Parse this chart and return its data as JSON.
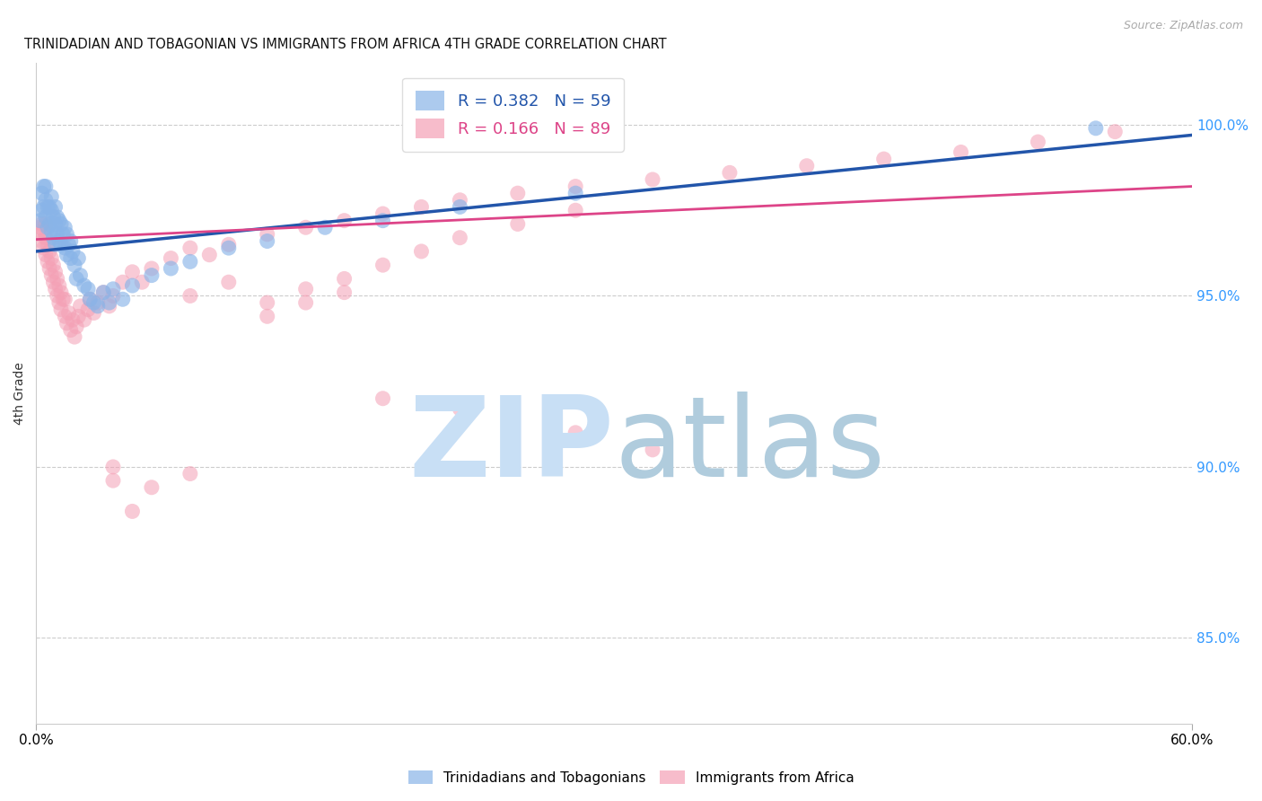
{
  "title": "TRINIDADIAN AND TOBAGONIAN VS IMMIGRANTS FROM AFRICA 4TH GRADE CORRELATION CHART",
  "source": "Source: ZipAtlas.com",
  "ylabel": "4th Grade",
  "ytick_labels": [
    "100.0%",
    "95.0%",
    "90.0%",
    "85.0%"
  ],
  "ytick_values": [
    1.0,
    0.95,
    0.9,
    0.85
  ],
  "xlim": [
    0.0,
    0.6
  ],
  "ylim": [
    0.825,
    1.018
  ],
  "legend1_label": "R = 0.382   N = 59",
  "legend2_label": "R = 0.166   N = 89",
  "legend1_color": "#89b4e8",
  "legend2_color": "#f4a0b5",
  "trendline1_color": "#2255aa",
  "trendline2_color": "#dd4488",
  "title_fontsize": 11,
  "blue_scatter_x": [
    0.002,
    0.003,
    0.003,
    0.004,
    0.004,
    0.005,
    0.005,
    0.005,
    0.006,
    0.006,
    0.007,
    0.007,
    0.008,
    0.008,
    0.008,
    0.009,
    0.009,
    0.01,
    0.01,
    0.01,
    0.011,
    0.011,
    0.012,
    0.012,
    0.013,
    0.013,
    0.014,
    0.015,
    0.015,
    0.016,
    0.016,
    0.017,
    0.018,
    0.018,
    0.019,
    0.02,
    0.021,
    0.022,
    0.023,
    0.025,
    0.027,
    0.028,
    0.03,
    0.032,
    0.035,
    0.038,
    0.04,
    0.045,
    0.05,
    0.06,
    0.07,
    0.08,
    0.1,
    0.12,
    0.15,
    0.18,
    0.22,
    0.28,
    0.55
  ],
  "blue_scatter_y": [
    0.972,
    0.975,
    0.98,
    0.976,
    0.982,
    0.973,
    0.978,
    0.982,
    0.97,
    0.976,
    0.971,
    0.976,
    0.969,
    0.975,
    0.979,
    0.967,
    0.973,
    0.965,
    0.971,
    0.976,
    0.968,
    0.973,
    0.966,
    0.972,
    0.965,
    0.971,
    0.968,
    0.964,
    0.97,
    0.962,
    0.968,
    0.965,
    0.961,
    0.966,
    0.963,
    0.959,
    0.955,
    0.961,
    0.956,
    0.953,
    0.952,
    0.949,
    0.948,
    0.947,
    0.951,
    0.948,
    0.952,
    0.949,
    0.953,
    0.956,
    0.958,
    0.96,
    0.964,
    0.966,
    0.97,
    0.972,
    0.976,
    0.98,
    0.999
  ],
  "pink_scatter_x": [
    0.001,
    0.002,
    0.003,
    0.003,
    0.004,
    0.004,
    0.005,
    0.005,
    0.005,
    0.006,
    0.006,
    0.007,
    0.007,
    0.008,
    0.008,
    0.009,
    0.009,
    0.01,
    0.01,
    0.011,
    0.011,
    0.012,
    0.012,
    0.013,
    0.013,
    0.014,
    0.015,
    0.015,
    0.016,
    0.017,
    0.018,
    0.019,
    0.02,
    0.021,
    0.022,
    0.023,
    0.025,
    0.027,
    0.028,
    0.03,
    0.032,
    0.035,
    0.038,
    0.04,
    0.045,
    0.05,
    0.055,
    0.06,
    0.07,
    0.08,
    0.09,
    0.1,
    0.12,
    0.14,
    0.16,
    0.18,
    0.2,
    0.22,
    0.25,
    0.28,
    0.32,
    0.36,
    0.4,
    0.44,
    0.48,
    0.52,
    0.56,
    0.08,
    0.1,
    0.12,
    0.14,
    0.16,
    0.18,
    0.2,
    0.22,
    0.25,
    0.28,
    0.18,
    0.22,
    0.28,
    0.32,
    0.12,
    0.14,
    0.16,
    0.04,
    0.06,
    0.08,
    0.04,
    0.05
  ],
  "pink_scatter_y": [
    0.968,
    0.97,
    0.966,
    0.971,
    0.964,
    0.969,
    0.962,
    0.967,
    0.971,
    0.96,
    0.965,
    0.958,
    0.963,
    0.956,
    0.961,
    0.954,
    0.959,
    0.952,
    0.957,
    0.95,
    0.955,
    0.948,
    0.953,
    0.946,
    0.951,
    0.949,
    0.944,
    0.949,
    0.942,
    0.945,
    0.94,
    0.943,
    0.938,
    0.941,
    0.944,
    0.947,
    0.943,
    0.946,
    0.949,
    0.945,
    0.948,
    0.951,
    0.947,
    0.95,
    0.954,
    0.957,
    0.954,
    0.958,
    0.961,
    0.964,
    0.962,
    0.965,
    0.968,
    0.97,
    0.972,
    0.974,
    0.976,
    0.978,
    0.98,
    0.982,
    0.984,
    0.986,
    0.988,
    0.99,
    0.992,
    0.995,
    0.998,
    0.95,
    0.954,
    0.948,
    0.952,
    0.955,
    0.959,
    0.963,
    0.967,
    0.971,
    0.975,
    0.92,
    0.917,
    0.91,
    0.905,
    0.944,
    0.948,
    0.951,
    0.896,
    0.894,
    0.898,
    0.9,
    0.887
  ]
}
